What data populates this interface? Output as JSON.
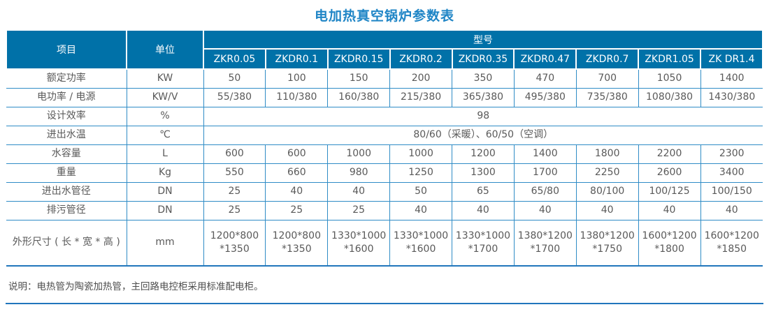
{
  "title": "电加热真空锅炉参数表",
  "colors": {
    "header_bg": "#0071a8",
    "grid_line": "#2f8cc6",
    "title_text": "#1f85c6",
    "body_text": "#595959",
    "bottom_rule": "#2176bc"
  },
  "table": {
    "corner_item": "项目",
    "corner_unit": "单位",
    "model_group": "型号",
    "models": [
      "ZKR0.05",
      "ZKDR0.1",
      "ZKDR0.15",
      "ZKDR0.2",
      "ZKDR0.35",
      "ZKDR0.47",
      "ZKDR0.7",
      "ZKDR1.05",
      "ZK DR1.4"
    ],
    "rows": [
      {
        "label": "额定功率",
        "unit": "KW",
        "values": [
          "50",
          "100",
          "150",
          "200",
          "350",
          "470",
          "700",
          "1050",
          "1400"
        ]
      },
      {
        "label": "电功率 / 电源",
        "unit": "KW/V",
        "values": [
          "55/380",
          "110/380",
          "160/380",
          "215/380",
          "365/380",
          "495/380",
          "735/380",
          "1080/380",
          "1430/380"
        ]
      },
      {
        "label": "设计效率",
        "unit": "%",
        "span_value": "98"
      },
      {
        "label": "进出水温",
        "unit": "℃",
        "span_value": "80/60（采暖）、60/50（空调）"
      },
      {
        "label": "水容量",
        "unit": "L",
        "values": [
          "600",
          "600",
          "1000",
          "1000",
          "1200",
          "1400",
          "1800",
          "2200",
          "2300"
        ]
      },
      {
        "label": "重量",
        "unit": "Kg",
        "values": [
          "550",
          "660",
          "980",
          "1250",
          "1300",
          "1700",
          "2250",
          "2600",
          "3400"
        ]
      },
      {
        "label": "进出水管径",
        "unit": "DN",
        "values": [
          "25",
          "40",
          "40",
          "50",
          "65",
          "65/80",
          "80/100",
          "100/125",
          "100/150"
        ]
      },
      {
        "label": "排污管径",
        "unit": "DN",
        "values": [
          "25",
          "25",
          "25",
          "40",
          "40",
          "40",
          "40",
          "40",
          "40"
        ]
      },
      {
        "label": "外形尺寸 ( 长 * 宽 * 高 )",
        "unit": "mm",
        "tall": true,
        "values": [
          "1200*800\n*1350",
          "1200*800\n*1350",
          "1330*1000\n*1600",
          "1330*1000\n*1600",
          "1330*1000\n*1700",
          "1380*1200\n*1700",
          "1380*1200\n*1750",
          "1600*1200\n*1800",
          "1600*1200\n*1850"
        ]
      }
    ]
  },
  "note": "说明：电热管为陶瓷加热管，主回路电控柜采用标准配电柜。"
}
